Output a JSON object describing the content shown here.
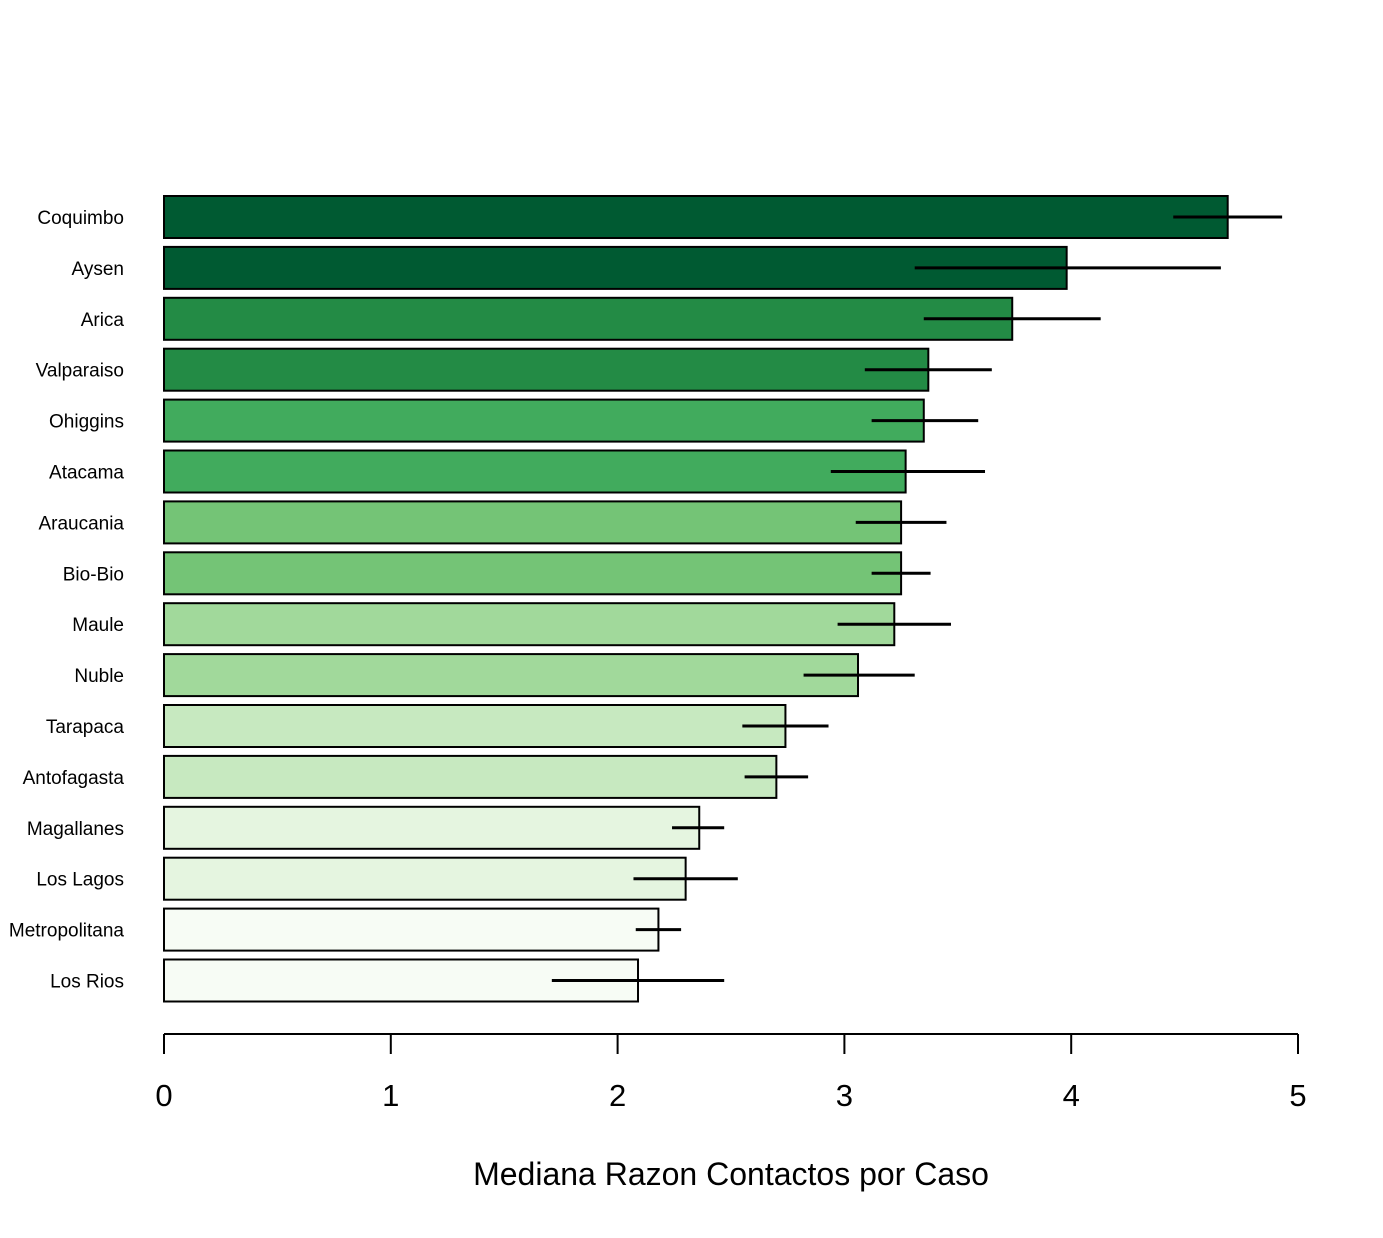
{
  "chart_data": {
    "type": "bar",
    "orientation": "horizontal",
    "xlabel": "Mediana Razon Contactos por Caso",
    "ylabel": "",
    "xlim": [
      0,
      5
    ],
    "xticks": [
      "0",
      "1",
      "2",
      "3",
      "4",
      "5"
    ],
    "grid": false,
    "legend": "none",
    "categories": [
      "Coquimbo",
      "Aysen",
      "Arica",
      "Valparaiso",
      "Ohiggins",
      "Atacama",
      "Araucania",
      "Bio-Bio",
      "Maule",
      "Nuble",
      "Tarapaca",
      "Antofagasta",
      "Magallanes",
      "Los Lagos",
      "Metropolitana",
      "Los Rios"
    ],
    "values": [
      4.69,
      3.98,
      3.74,
      3.37,
      3.35,
      3.27,
      3.25,
      3.25,
      3.22,
      3.06,
      2.74,
      2.7,
      2.36,
      2.3,
      2.18,
      2.09
    ],
    "error_low": [
      4.45,
      3.31,
      3.35,
      3.09,
      3.12,
      2.94,
      3.05,
      3.12,
      2.97,
      2.82,
      2.55,
      2.56,
      2.24,
      2.07,
      2.08,
      1.71
    ],
    "error_high": [
      4.93,
      4.66,
      4.13,
      3.65,
      3.59,
      3.62,
      3.45,
      3.38,
      3.47,
      3.31,
      2.93,
      2.84,
      2.47,
      2.53,
      2.28,
      2.47
    ],
    "colors": [
      "#005A32",
      "#005A32",
      "#238B45",
      "#238B45",
      "#41AB5D",
      "#41AB5D",
      "#74C476",
      "#74C476",
      "#A1D99B",
      "#A1D99B",
      "#C7E9C0",
      "#C7E9C0",
      "#E5F5E0",
      "#E5F5E0",
      "#F7FCF5",
      "#F7FCF5"
    ]
  }
}
